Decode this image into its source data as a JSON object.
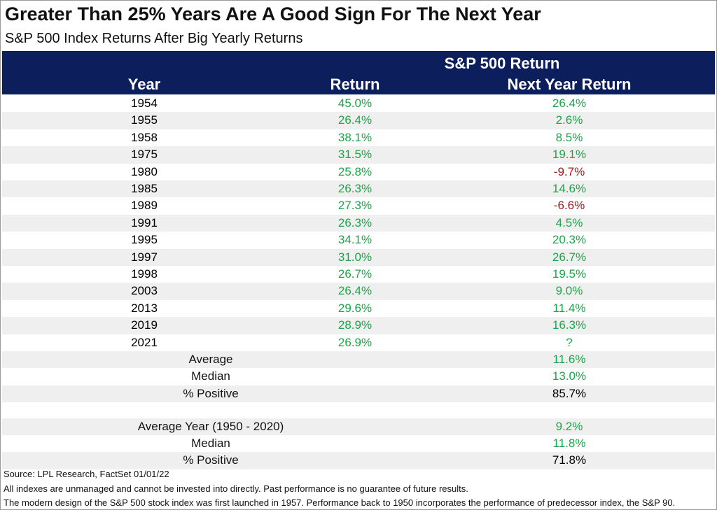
{
  "header": {
    "title": "Greater Than 25% Years Are A Good Sign For The Next Year",
    "subtitle": "S&P 500 Index Returns After Big Yearly Returns"
  },
  "table": {
    "group_header": "S&P 500 Return",
    "columns": [
      "Year",
      "Return",
      "Next Year Return"
    ],
    "colors": {
      "positive": "#1fa34a",
      "negative": "#9b1b1b",
      "neutral": "#000000"
    },
    "rows": [
      [
        "1954",
        "45.0%",
        "26.4%"
      ],
      [
        "1955",
        "26.4%",
        "2.6%"
      ],
      [
        "1958",
        "38.1%",
        "8.5%"
      ],
      [
        "1975",
        "31.5%",
        "19.1%"
      ],
      [
        "1980",
        "25.8%",
        "-9.7%"
      ],
      [
        "1985",
        "26.3%",
        "14.6%"
      ],
      [
        "1989",
        "27.3%",
        "-6.6%"
      ],
      [
        "1991",
        "26.3%",
        "4.5%"
      ],
      [
        "1995",
        "34.1%",
        "20.3%"
      ],
      [
        "1997",
        "31.0%",
        "26.7%"
      ],
      [
        "1998",
        "26.7%",
        "19.5%"
      ],
      [
        "2003",
        "26.4%",
        "9.0%"
      ],
      [
        "2013",
        "29.6%",
        "11.4%"
      ],
      [
        "2019",
        "28.9%",
        "16.3%"
      ],
      [
        "2021",
        "26.9%",
        "?"
      ]
    ],
    "summary_groups": [
      [
        {
          "label": "Average",
          "value": "11.6%",
          "tone": "positive"
        },
        {
          "label": "Median",
          "value": "13.0%",
          "tone": "positive"
        },
        {
          "label": "% Positive",
          "value": "85.7%",
          "tone": "neutral"
        }
      ],
      [
        {
          "label": "Average Year (1950 - 2020)",
          "value": "9.2%",
          "tone": "positive"
        },
        {
          "label": "Median",
          "value": "11.8%",
          "tone": "positive"
        },
        {
          "label": "% Positive",
          "value": "71.8%",
          "tone": "neutral"
        }
      ]
    ]
  },
  "footer": [
    "Source: LPL Research, FactSet 01/01/22",
    "All indexes are unmanaged and cannot be invested into directly. Past performance is no guarantee of future results.",
    "The modern design of the S&P 500 stock index was first launched in 1957. Performance back to 1950 incorporates the performance of predecessor index, the S&P 90."
  ]
}
